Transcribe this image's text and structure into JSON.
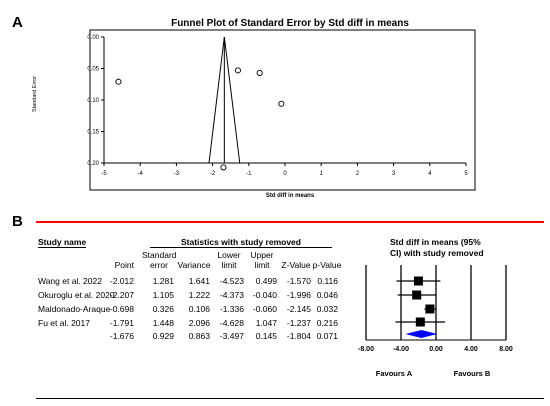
{
  "panel_a": {
    "letter": "A",
    "chart_data": {
      "type": "scatter",
      "title": "Funnel Plot of Standard Error by Std diff in means",
      "xlabel": "Std diff in means",
      "ylabel": "Standard Error",
      "xlim": [
        -5,
        5
      ],
      "ylim": [
        0.0,
        0.2
      ],
      "y_reversed": true,
      "x_ticks": [
        "-5",
        "-4",
        "-3",
        "-2",
        "-1",
        "0",
        "1",
        "2",
        "3",
        "4",
        "5"
      ],
      "y_ticks": [
        "0.00",
        "0.05",
        "0.10",
        "0.15",
        "0.20"
      ],
      "grid": false,
      "pooled_estimate": -1.676,
      "points": [
        {
          "x": -4.6,
          "y": 0.071
        },
        {
          "x": -1.3,
          "y": 0.053
        },
        {
          "x": -0.7,
          "y": 0.057
        },
        {
          "x": -0.1,
          "y": 0.106
        },
        {
          "x": -1.7,
          "y": 0.207
        }
      ],
      "funnel": {
        "apex": {
          "x": -1.676,
          "y": 0.0
        },
        "base_left": {
          "x": -2.1,
          "y": 0.2
        },
        "base_right": {
          "x": -1.25,
          "y": 0.2
        },
        "center_line": {
          "x": -1.676
        }
      }
    }
  },
  "panel_b": {
    "letter": "B",
    "headers": {
      "study_name": "Study name",
      "group_title": "Statistics with study removed",
      "point": "Point",
      "std_error": [
        "Standard",
        "error"
      ],
      "variance": "Variance",
      "lower": [
        "Lower",
        "limit"
      ],
      "upper": [
        "Upper",
        "limit"
      ],
      "zvalue": "Z-Value",
      "pvalue": "p-Value",
      "forest_title_1": "Std diff in means (95%",
      "forest_title_2": "CI) with study removed"
    },
    "rows": [
      {
        "study": "Wang et al. 2022",
        "point": "-2.012",
        "se": "1.281",
        "var": "1.641",
        "lower": "-4.523",
        "upper": "0.499",
        "z": "-1.570",
        "p": "0.116"
      },
      {
        "study": "Okuroglu et al. 2020",
        "point": "-2.207",
        "se": "1.105",
        "var": "1.222",
        "lower": "-4.373",
        "upper": "-0.040",
        "z": "-1.996",
        "p": "0.046"
      },
      {
        "study": "Maldonado-Araque",
        "point": "-0.698",
        "se": "0.326",
        "var": "0.106",
        "lower": "-1.336",
        "upper": "-0.060",
        "z": "-2.145",
        "p": "0.032"
      },
      {
        "study": "Fu et al. 2017",
        "point": "-1.791",
        "se": "1.448",
        "var": "2.096",
        "lower": "-4.628",
        "upper": "1.047",
        "z": "-1.237",
        "p": "0.216"
      },
      {
        "study": "",
        "point": "-1.676",
        "se": "0.929",
        "var": "0.863",
        "lower": "-3.497",
        "upper": "0.145",
        "z": "-1.804",
        "p": "0.071"
      }
    ],
    "chart_data": {
      "type": "scatter",
      "title": "Std diff in means (95% CI) with study removed",
      "xlim": [
        -8,
        8
      ],
      "x_ticks": [
        "-8.00",
        "-4.00",
        "0.00",
        "4.00",
        "8.00"
      ],
      "favours_left": "Favours A",
      "favours_right": "Favours B",
      "points": [
        {
          "est": -2.012,
          "lower": -4.523,
          "upper": 0.499
        },
        {
          "est": -2.207,
          "lower": -4.373,
          "upper": -0.04
        },
        {
          "est": -0.698,
          "lower": -1.336,
          "upper": -0.06
        },
        {
          "est": -1.791,
          "lower": -4.628,
          "upper": 1.047
        }
      ],
      "summary": {
        "est": -1.676,
        "lower": -3.497,
        "upper": 0.145
      },
      "summary_color": "#0000ff",
      "marker_color": "#000000"
    }
  }
}
